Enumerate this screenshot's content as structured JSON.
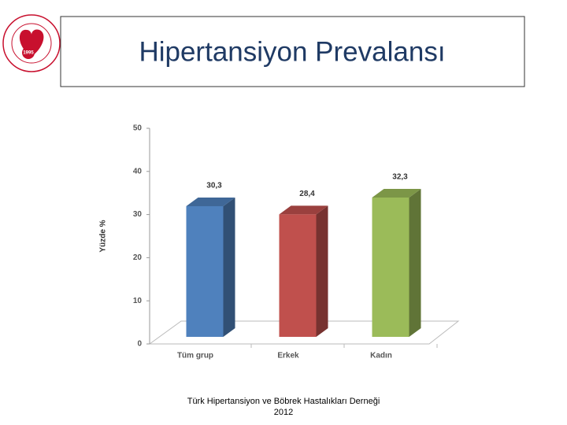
{
  "logo": {
    "year": "1995"
  },
  "chart_data": {
    "type": "bar3d",
    "title": "Hipertansiyon Prevalansı",
    "y_label": "Yüzde %",
    "categories": [
      "Tüm grup",
      "Erkek",
      "Kadın"
    ],
    "values": [
      30.3,
      28.4,
      32.3
    ],
    "value_labels": [
      "30,3",
      "28,4",
      "32,3"
    ],
    "colors": [
      "#4f81bd",
      "#c0504d",
      "#9bbb59"
    ],
    "ylim": [
      0,
      50
    ],
    "yticks": [
      0,
      10,
      20,
      30,
      40,
      50
    ],
    "footer": [
      "Türk Hipertansiyon ve Böbrek Hastalıkları Derneği",
      "2012"
    ]
  }
}
